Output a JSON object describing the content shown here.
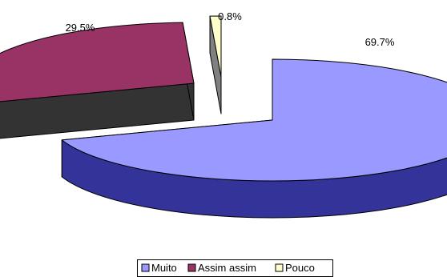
{
  "chart_data": {
    "type": "pie",
    "style": "3d-exploded",
    "categories": [
      "Muito",
      "Assim assim",
      "Pouco"
    ],
    "values": [
      69.7,
      29.5,
      0.8
    ],
    "labels": [
      "69.7%",
      "29.5%",
      "0.8%"
    ],
    "colors": [
      "#9999ff",
      "#993366",
      "#ffffcc"
    ],
    "side_colors": [
      "#333399",
      "#333333",
      "#808080"
    ],
    "legend": {
      "position": "bottom"
    }
  }
}
